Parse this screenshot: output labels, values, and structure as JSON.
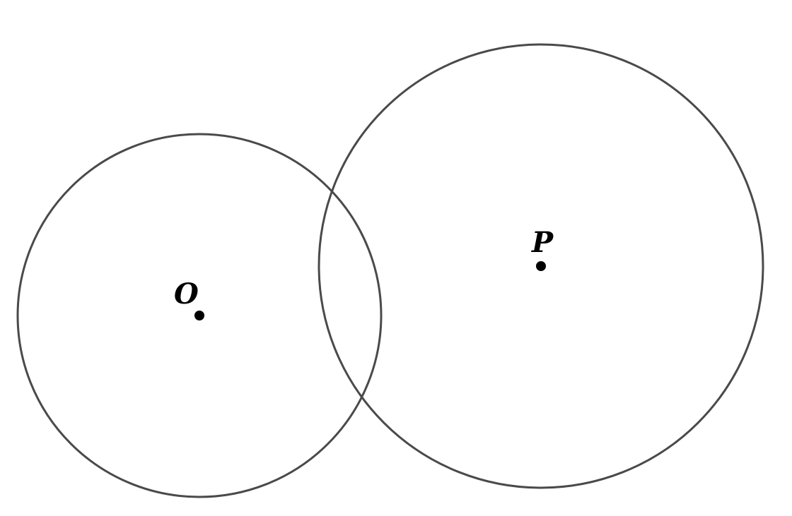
{
  "diagram": {
    "circles": [
      {
        "id": "circle-o",
        "center_label": "O"
      },
      {
        "id": "circle-p",
        "center_label": "P"
      }
    ],
    "colors": {
      "stroke": "#4a4a4a",
      "point": "#000000",
      "background": "#ffffff"
    }
  }
}
